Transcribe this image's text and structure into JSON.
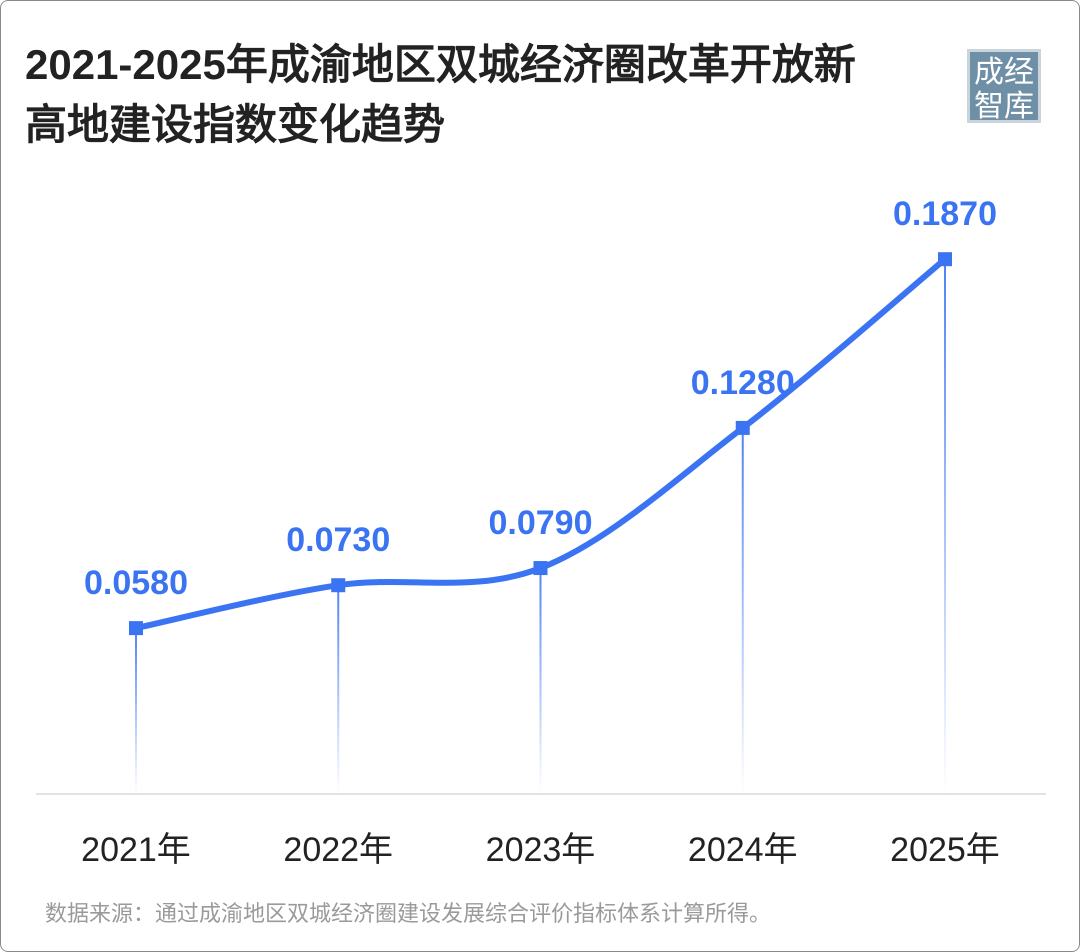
{
  "chart_data": {
    "type": "line",
    "title": "2021-2025年成渝地区双城经济圈改革开放新高地建设指数变化趋势",
    "logo": "成经智库",
    "categories": [
      "2021年",
      "2022年",
      "2023年",
      "2024年",
      "2025年"
    ],
    "values": [
      0.058,
      0.073,
      0.079,
      0.128,
      0.187
    ],
    "value_labels": [
      "0.0580",
      "0.0730",
      "0.0790",
      "0.1280",
      "0.1870"
    ],
    "color": "#3b74f2",
    "ylim": [
      0,
      0.2
    ],
    "source": "数据来源：通过成渝地区双城经济圈建设发展综合评价指标体系计算所得。"
  }
}
